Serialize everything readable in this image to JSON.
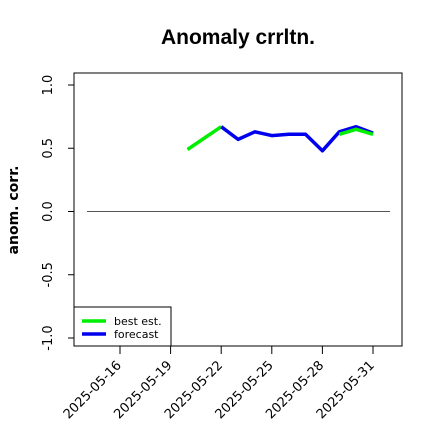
{
  "chart_data": {
    "type": "line",
    "title": "Anomaly crrltn.",
    "xlabel": "",
    "ylabel": "anom. corr.",
    "x_ticks": [
      "2025-05-16",
      "2025-05-19",
      "2025-05-22",
      "2025-05-25",
      "2025-05-28",
      "2025-05-31"
    ],
    "highlight_tick": "2025-05-22",
    "highlight_color": "#228B22",
    "y_ticks": [
      "-1.0",
      "-0.5",
      "0.0",
      "0.5",
      "1.0"
    ],
    "ylim": [
      -1.0,
      1.0
    ],
    "reference_line": 0.0,
    "legend_position": "bottom-left",
    "grid": false,
    "series": [
      {
        "name": "best est.",
        "color": "#00ee00",
        "x": [
          "2025-05-20",
          "2025-05-22"
        ],
        "values": [
          0.49,
          0.67
        ]
      },
      {
        "name": "forecast",
        "color": "#0000ee",
        "x": [
          "2025-05-22",
          "2025-05-23",
          "2025-05-24",
          "2025-05-25",
          "2025-05-26",
          "2025-05-27",
          "2025-05-28",
          "2025-05-29",
          "2025-05-30",
          "2025-05-31"
        ],
        "values": [
          0.67,
          0.57,
          0.63,
          0.6,
          0.61,
          0.61,
          0.48,
          0.63,
          0.67,
          0.62
        ]
      },
      {
        "name": "",
        "color": "#00ee00",
        "x": [
          "2025-05-29",
          "2025-05-30",
          "2025-05-31"
        ],
        "values": [
          0.61,
          0.65,
          0.61
        ]
      }
    ]
  }
}
